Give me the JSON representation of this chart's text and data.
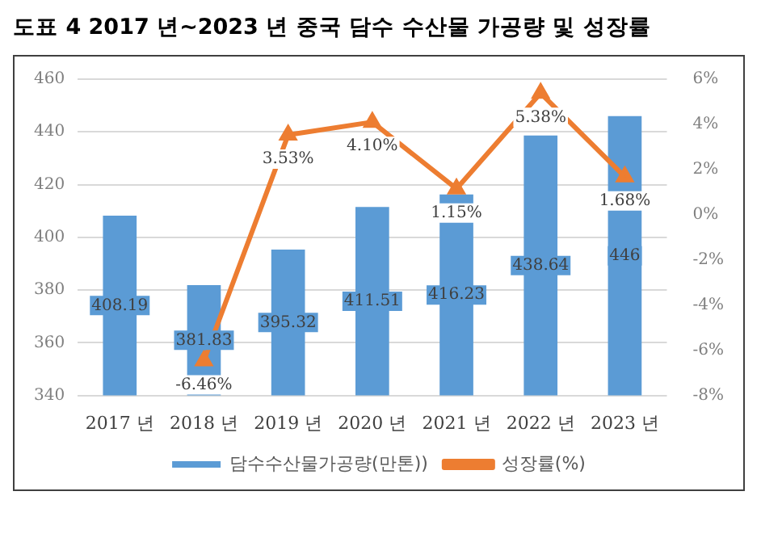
{
  "chart_data": {
    "type": "bar",
    "title": "도표 4   2017 년~2023 년 중국 담수 수산물 가공량 및 성장률",
    "categories": [
      "2017 년",
      "2018 년",
      "2019 년",
      "2020 년",
      "2021 년",
      "2022 년",
      "2023 년"
    ],
    "series": [
      {
        "name": "담수수산물가공량(만톤))",
        "color": "#5b9bd5",
        "values": [
          408.19,
          381.83,
          395.32,
          411.51,
          416.23,
          438.64,
          446
        ],
        "value_labels": [
          "408.19",
          "381.83",
          "395.32",
          "411.51",
          "416.23",
          "438.64",
          "446"
        ]
      },
      {
        "name": "성장률(%)",
        "type": "line",
        "axis": "y2",
        "color": "#ed7d31",
        "marker": "triangle",
        "values": [
          null,
          -6.46,
          3.53,
          4.1,
          1.15,
          5.38,
          1.68
        ],
        "value_labels": [
          null,
          "-6.46%",
          "3.53%",
          "4.10%",
          "1.15%",
          "5.38%",
          "1.68%"
        ]
      }
    ],
    "ylim": [
      340,
      460
    ],
    "yticks": [
      340,
      360,
      380,
      400,
      420,
      440,
      460
    ],
    "y2lim": [
      -8,
      6
    ],
    "y2ticks": [
      {
        "value": -8,
        "label": "-8%"
      },
      {
        "value": -6,
        "label": "-6%"
      },
      {
        "value": -4,
        "label": "-4%"
      },
      {
        "value": -2,
        "label": "-2%"
      },
      {
        "value": 0,
        "label": "0%"
      },
      {
        "value": 2,
        "label": "2%"
      },
      {
        "value": 4,
        "label": "4%"
      },
      {
        "value": 6,
        "label": "6%"
      }
    ],
    "grid": "y",
    "legend": "bottom"
  }
}
